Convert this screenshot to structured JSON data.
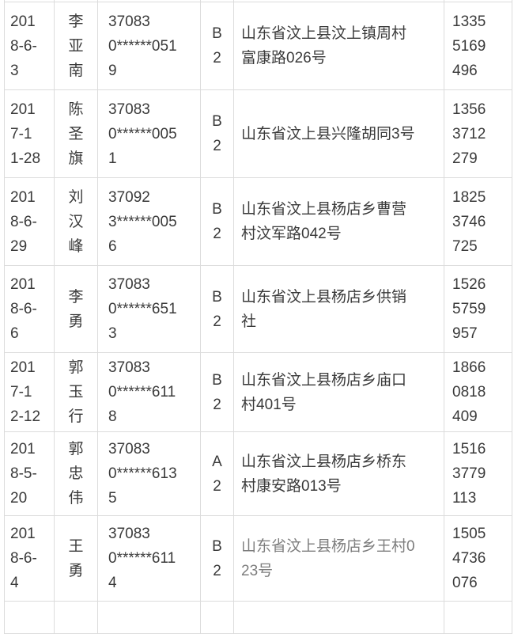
{
  "colors": {
    "background": "#ffffff",
    "border": "#dcdcdc",
    "text": "#3a3a3a"
  },
  "table": {
    "description": "record list: date, name, masked id, license class, address, phone",
    "rows": [
      {
        "date": "201\n8-6-\n3",
        "name": "李\n亚\n南",
        "id_masked": "37083\n0******051\n9",
        "license_class": "B\n2",
        "address": "山东省汶上县汶上镇周村\n富康路026号",
        "phone": "1335\n5169\n496"
      },
      {
        "date": "201\n7-1\n1-28",
        "name": "陈\n圣\n旗",
        "id_masked": "37083\n0******005\n1",
        "license_class": "B\n2",
        "address": "山东省汶上县兴隆胡同3号",
        "phone": "1356\n3712\n279"
      },
      {
        "date": "201\n8-6-\n29",
        "name": "刘\n汉\n峰",
        "id_masked": "37092\n3******005\n6",
        "license_class": "B\n2",
        "address": "山东省汶上县杨店乡曹营\n村汶军路042号",
        "phone": "1825\n3746\n725"
      },
      {
        "date": "201\n8-6-\n6",
        "name": "李\n勇",
        "id_masked": "37083\n0******651\n3",
        "license_class": "B\n2",
        "address": "山东省汶上县杨店乡供销\n社",
        "phone": "1526\n5759\n957"
      },
      {
        "date": "201\n7-1\n2-12",
        "name": "郭\n玉\n行",
        "id_masked": "37083\n0******611\n8",
        "license_class": "B\n2",
        "address": "山东省汶上县杨店乡庙口\n村401号",
        "phone": "1866\n0818\n409"
      },
      {
        "date": "201\n8-5-\n20",
        "name": "郭\n忠\n伟",
        "id_masked": "37083\n0******613\n5",
        "license_class": "A\n2",
        "address": "山东省汶上县杨店乡桥东\n村康安路013号",
        "phone": "1516\n3779\n113"
      },
      {
        "date": "201\n8-6-\n4",
        "name": "王\n勇",
        "id_masked": "37083\n0******611\n4",
        "license_class": "B\n2",
        "address": "山东省汶上县杨店乡王村0\n23号",
        "phone": "1505\n4736\n076"
      }
    ]
  }
}
